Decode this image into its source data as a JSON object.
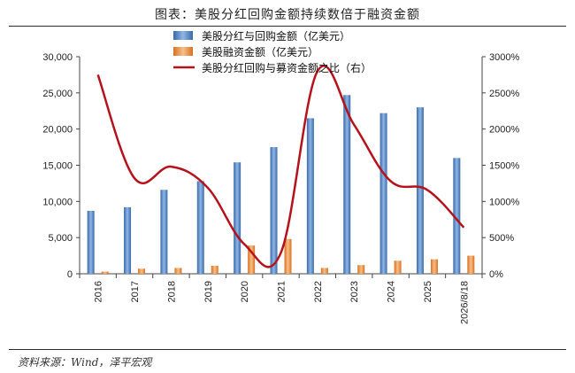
{
  "title": "图表：美股分红回购金额持续数倍于融资金额",
  "source": "资料来源：Wind，泽平宏观",
  "colors": {
    "buyback_bar": "#4a7fc1",
    "financing_bar": "#f08c3a",
    "ratio_line": "#b5121b"
  },
  "chart_data": {
    "type": "bar+line",
    "categories": [
      "2016",
      "2017",
      "2018",
      "2019",
      "2020",
      "2021",
      "2022",
      "2023",
      "2024",
      "2025",
      "2026/8/18"
    ],
    "series": [
      {
        "name": "美股分红与回购金额（亿美元）",
        "type": "bar",
        "axis": "left",
        "values": [
          8700,
          9200,
          11600,
          12800,
          15400,
          17500,
          21500,
          24700,
          22200,
          23000,
          16000
        ]
      },
      {
        "name": "美股融资金额（亿美元）",
        "type": "bar",
        "axis": "left",
        "values": [
          300,
          700,
          800,
          1100,
          3900,
          4800,
          800,
          1200,
          1800,
          2000,
          2500
        ]
      },
      {
        "name": "美股分红回购与募资金额之比（右）",
        "type": "line",
        "axis": "right",
        "values": [
          2750,
          1320,
          1480,
          1190,
          410,
          290,
          2800,
          2060,
          1280,
          1160,
          640
        ]
      }
    ],
    "left_axis": {
      "min": 0,
      "max": 30000,
      "ticks": [
        "0",
        "5,000",
        "10,000",
        "15,000",
        "20,000",
        "25,000",
        "30,000"
      ]
    },
    "right_axis": {
      "min": 0,
      "max": 3000,
      "ticks": [
        "0%",
        "500%",
        "1000%",
        "1500%",
        "2000%",
        "2500%",
        "3000%"
      ]
    },
    "grid": false,
    "legend": "top-center"
  }
}
